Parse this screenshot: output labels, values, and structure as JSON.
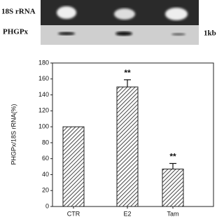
{
  "blot": {
    "row_labels": [
      "18S rRNA",
      "PHGPx"
    ],
    "size_label": "1kb"
  },
  "chart_data": {
    "type": "bar",
    "y_label": "PHGPx/18S rRNA(%)",
    "categories": [
      "CTR",
      "E2",
      "Tam"
    ],
    "values": [
      100,
      150,
      47
    ],
    "errors": [
      null,
      9,
      7
    ],
    "value_annotations": [
      null,
      "**",
      "**"
    ],
    "color": "#555555",
    "ylim": [
      0,
      180
    ],
    "yticks": [
      0,
      20,
      40,
      60,
      80,
      100,
      120,
      140,
      160,
      180
    ]
  }
}
